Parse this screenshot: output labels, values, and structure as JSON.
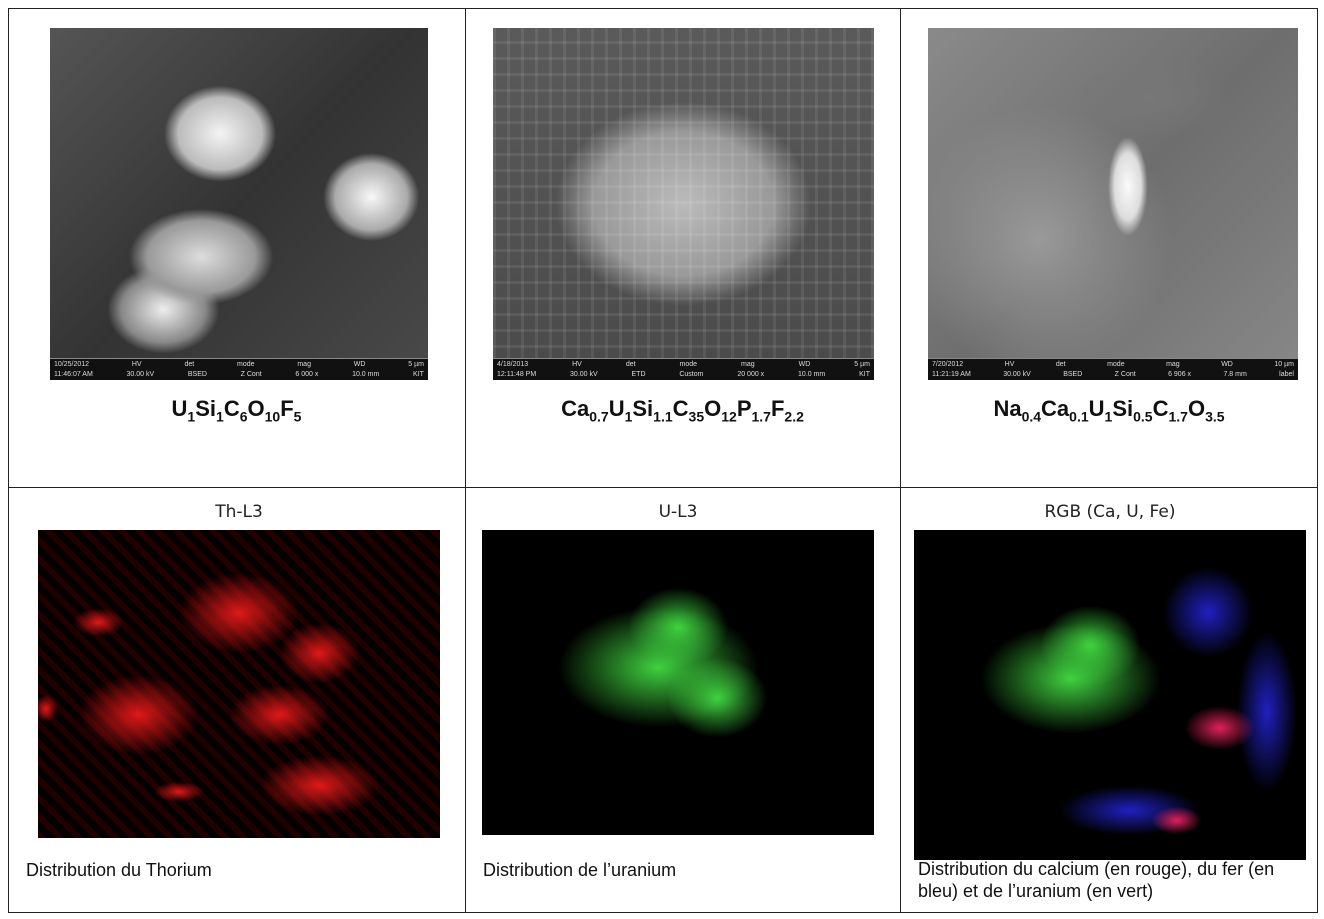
{
  "photos": [
    {
      "formula": [
        [
          "U",
          "1"
        ],
        [
          "Si",
          "1"
        ],
        [
          "C",
          "6"
        ],
        [
          "O",
          "10"
        ],
        [
          "F",
          "5"
        ]
      ],
      "info": {
        "top": [
          "10/25/2012",
          "HV",
          "det",
          "mode",
          "mag",
          "WD",
          "5 µm"
        ],
        "bottom": [
          "11:46:07 AM",
          "30.00 kV",
          "BSED",
          "Z Cont",
          "6 000 x",
          "10.0 mm",
          "KIT"
        ]
      }
    },
    {
      "formula": [
        [
          "Ca",
          "0.7"
        ],
        [
          "U",
          "1"
        ],
        [
          "Si",
          "1.1"
        ],
        [
          "C",
          "35"
        ],
        [
          "O",
          "12"
        ],
        [
          "P",
          "1.7"
        ],
        [
          "F",
          "2.2"
        ]
      ],
      "info": {
        "top": [
          "4/18/2013",
          "HV",
          "det",
          "mode",
          "mag",
          "WD",
          "5 µm"
        ],
        "bottom": [
          "12:11:48 PM",
          "30.00 kV",
          "ETD",
          "Custom",
          "20 000 x",
          "10.0 mm",
          "KIT"
        ]
      }
    },
    {
      "formula": [
        [
          "Na",
          "0.4"
        ],
        [
          "Ca",
          "0.1"
        ],
        [
          "U",
          "1"
        ],
        [
          "Si",
          "0.5"
        ],
        [
          "C",
          "1.7"
        ],
        [
          "O",
          "3.5"
        ]
      ],
      "info": {
        "top": [
          "7/20/2012",
          "HV",
          "det",
          "mode",
          "mag",
          "WD",
          "10 µm"
        ],
        "bottom": [
          "11:21:19 AM",
          "30.00 kV",
          "BSED",
          "Z Cont",
          "6 906 x",
          "7.8 mm",
          "label"
        ]
      }
    }
  ],
  "maps": [
    {
      "title": "Th-L3",
      "caption": "Distribution du Thorium"
    },
    {
      "title": "U-L3",
      "caption": "Distribution de l’uranium"
    },
    {
      "title": "RGB (Ca, U, Fe)",
      "caption": "Distribution du calcium (en rouge), du fer (en bleu) et de l’uranium (en vert)"
    }
  ]
}
